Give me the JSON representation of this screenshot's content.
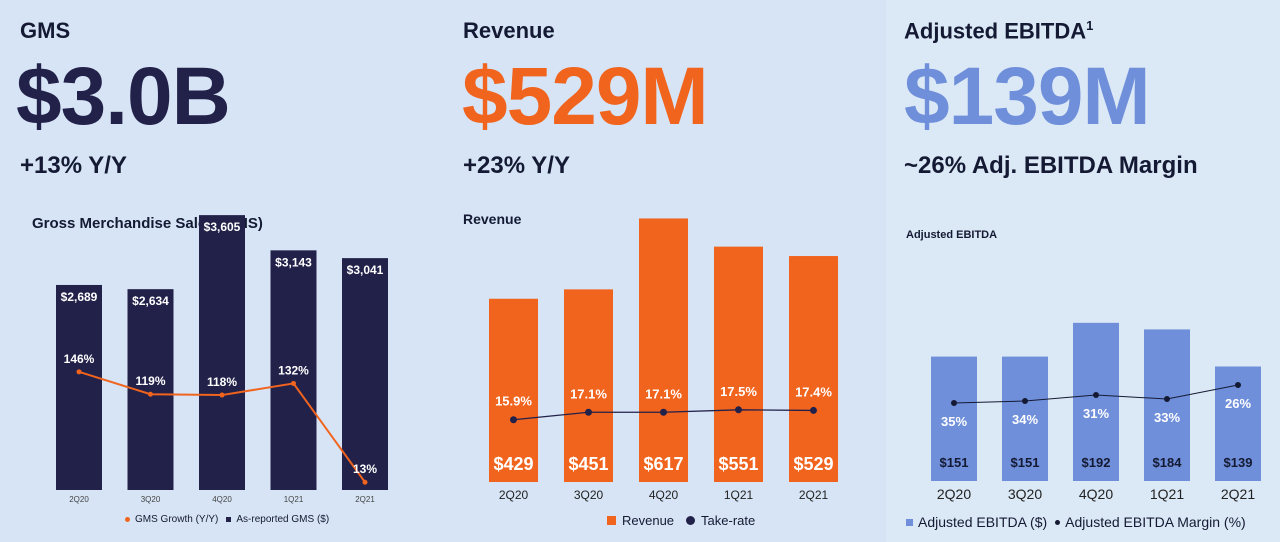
{
  "gms": {
    "label": "GMS",
    "value": "$3.0B",
    "sub": "+13% Y/Y",
    "chart_title": "Gross Merchandise Sales (GMS)",
    "legend_line": "GMS Growth (Y/Y)",
    "legend_bar": "As-reported GMS ($)"
  },
  "revenue": {
    "label": "Revenue",
    "value": "$529M",
    "sub": "+23% Y/Y",
    "chart_title": "Revenue",
    "legend_bar": "Revenue",
    "legend_line": "Take-rate"
  },
  "ebitda": {
    "label": "Adjusted EBITDA",
    "label_sup": "1",
    "value": "$139M",
    "sub": "~26% Adj. EBITDA Margin",
    "chart_title": "Adjusted EBITDA",
    "legend_bar": "Adjusted EBITDA ($)",
    "legend_line": "Adjusted EBITDA Margin (%)"
  },
  "colors": {
    "navy": "#22214a",
    "orange": "#f1641e",
    "blue": "#6f8fda",
    "text": "#141a33"
  },
  "chart_data": [
    {
      "type": "bar",
      "title": "Gross Merchandise Sales (GMS)",
      "categories": [
        "2Q20",
        "3Q20",
        "4Q20",
        "1Q21",
        "2Q21"
      ],
      "series": [
        {
          "name": "As-reported GMS ($)",
          "type": "bar",
          "values": [
            2689,
            2634,
            3605,
            3143,
            3041
          ],
          "labels": [
            "$2,689",
            "$2,634",
            "$3,605",
            "$3,143",
            "$3,041"
          ]
        },
        {
          "name": "GMS Growth (Y/Y)",
          "type": "line",
          "values": [
            146,
            119,
            118,
            132,
            13
          ],
          "labels": [
            "146%",
            "119%",
            "118%",
            "132%",
            "13%"
          ]
        }
      ],
      "ylim": [
        0,
        4000
      ],
      "legend": "bottom"
    },
    {
      "type": "bar",
      "title": "Revenue",
      "categories": [
        "2Q20",
        "3Q20",
        "4Q20",
        "1Q21",
        "2Q21"
      ],
      "series": [
        {
          "name": "Revenue",
          "type": "bar",
          "values": [
            429,
            451,
            617,
            551,
            529
          ],
          "labels": [
            "$429",
            "$451",
            "$617",
            "$551",
            "$529"
          ]
        },
        {
          "name": "Take-rate",
          "type": "line",
          "values": [
            15.9,
            17.1,
            17.1,
            17.5,
            17.4
          ],
          "labels": [
            "15.9%",
            "17.1%",
            "17.1%",
            "17.5%",
            "17.4%"
          ]
        }
      ],
      "ylim": [
        0,
        700
      ],
      "legend": "bottom"
    },
    {
      "type": "bar",
      "title": "Adjusted EBITDA",
      "categories": [
        "2Q20",
        "3Q20",
        "4Q20",
        "1Q21",
        "2Q21"
      ],
      "series": [
        {
          "name": "Adjusted EBITDA ($)",
          "type": "bar",
          "values": [
            151,
            151,
            192,
            184,
            139
          ],
          "labels": [
            "$151",
            "$151",
            "$192",
            "$184",
            "$139"
          ]
        },
        {
          "name": "Adjusted EBITDA Margin (%)",
          "type": "line",
          "values": [
            35,
            34,
            31,
            33,
            26
          ],
          "labels": [
            "35%",
            "34%",
            "31%",
            "33%",
            "26%"
          ]
        }
      ],
      "ylim": [
        0,
        210
      ],
      "legend": "bottom"
    }
  ]
}
